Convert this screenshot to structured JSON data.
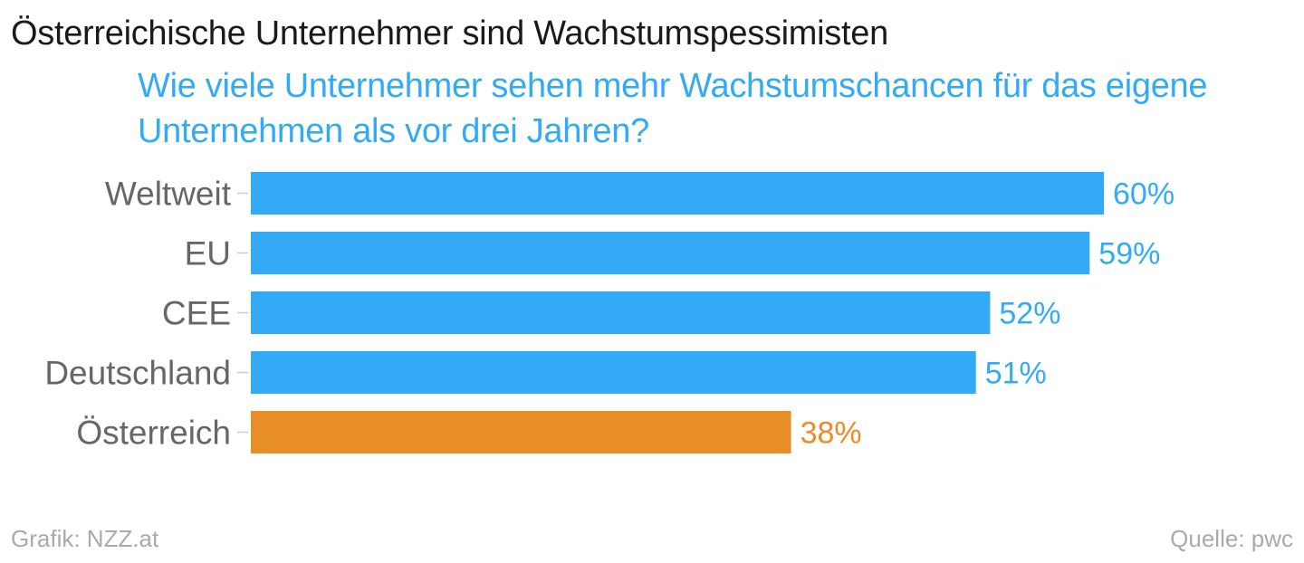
{
  "chart_data": {
    "type": "bar",
    "orientation": "horizontal",
    "title": "Österreichische Unternehmer sind Wachstumspessimisten",
    "subtitle": "Wie viele Unternehmer sehen mehr Wachstumschancen für das eigene Unternehmen als vor drei Jahren?",
    "categories": [
      "Weltweit",
      "EU",
      "CEE",
      "Deutschland",
      "Österreich"
    ],
    "values": [
      60,
      59,
      52,
      51,
      38
    ],
    "value_labels": [
      "60%",
      "59%",
      "52%",
      "51%",
      "38%"
    ],
    "bar_colors": [
      "#33aaf5",
      "#33aaf5",
      "#33aaf5",
      "#33aaf5",
      "#e88e27"
    ],
    "label_colors": [
      "#33aaf5",
      "#33aaf5",
      "#33aaf5",
      "#33aaf5",
      "#e88e27"
    ],
    "xlim": [
      0,
      60
    ],
    "grid": false,
    "xlabel": "",
    "ylabel": ""
  },
  "footer": {
    "credit": "Grafik: NZZ.at",
    "source": "Quelle: pwc"
  }
}
